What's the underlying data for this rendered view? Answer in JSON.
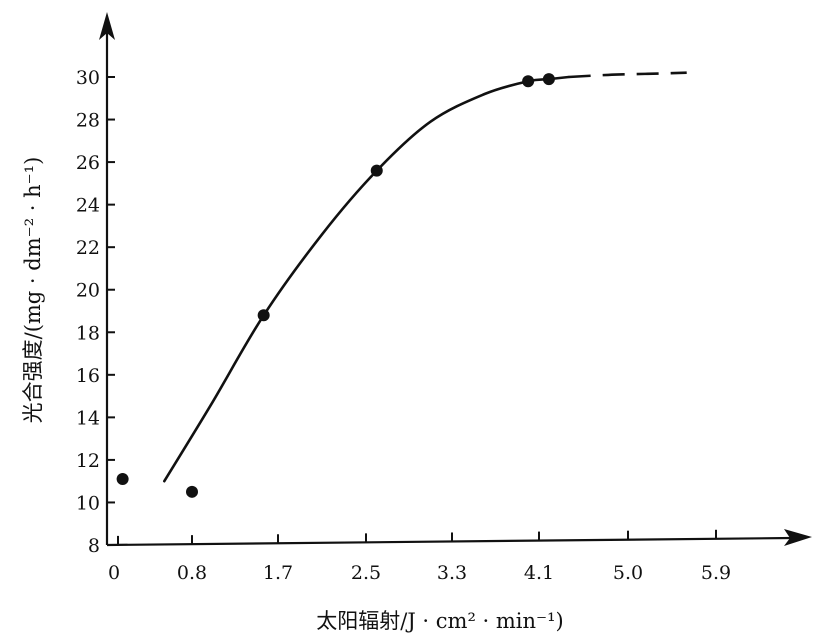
{
  "chart_data": {
    "type": "scatter",
    "xlabel": "太阳辐射/J · cm² · min⁻¹)",
    "ylabel": "光合强度/(mg · dm⁻² · h⁻¹)",
    "x_ticks": [
      "0",
      "0.8",
      "1.7",
      "2.5",
      "3.3",
      "4.1",
      "5.0",
      "5.9"
    ],
    "y_ticks": [
      8,
      10,
      12,
      14,
      16,
      18,
      20,
      22,
      24,
      26,
      28,
      30
    ],
    "xlim": [
      0,
      6.2
    ],
    "ylim": [
      8,
      31
    ],
    "grid": false,
    "points": [
      {
        "x": 0.05,
        "y": 11.1
      },
      {
        "x": 0.8,
        "y": 10.5
      },
      {
        "x": 1.55,
        "y": 18.8
      },
      {
        "x": 2.6,
        "y": 25.6
      },
      {
        "x": 4.0,
        "y": 29.8
      },
      {
        "x": 4.2,
        "y": 29.9
      }
    ],
    "fit_curve": {
      "solid": [
        [
          0.5,
          11.0
        ],
        [
          1.0,
          14.6
        ],
        [
          1.55,
          18.8
        ],
        [
          2.1,
          22.6
        ],
        [
          2.6,
          25.6
        ],
        [
          3.1,
          27.9
        ],
        [
          3.6,
          29.2
        ],
        [
          4.0,
          29.8
        ],
        [
          4.2,
          29.9
        ],
        [
          4.4,
          30.0
        ]
      ],
      "dashed": [
        [
          4.4,
          30.0
        ],
        [
          4.8,
          30.1
        ],
        [
          5.2,
          30.15
        ],
        [
          5.6,
          30.2
        ]
      ]
    }
  }
}
